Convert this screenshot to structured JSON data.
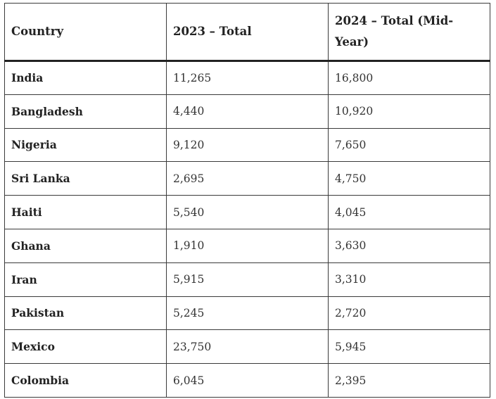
{
  "table": {
    "headers": [
      "Country",
      "2023 – Total",
      "2024 – Total (Mid-Year)"
    ],
    "rows": [
      [
        "India",
        "11,265",
        "16,800"
      ],
      [
        "Bangladesh",
        "4,440",
        "10,920"
      ],
      [
        "Nigeria",
        "9,120",
        "7,650"
      ],
      [
        "Sri Lanka",
        "2,695",
        "4,750"
      ],
      [
        "Haiti",
        "5,540",
        "4,045"
      ],
      [
        "Ghana",
        "1,910",
        "3,630"
      ],
      [
        "Iran",
        "5,915",
        "3,310"
      ],
      [
        "Pakistan",
        "5,245",
        "2,720"
      ],
      [
        "Mexico",
        "23,750",
        "5,945"
      ],
      [
        "Colombia",
        "6,045",
        "2,395"
      ]
    ]
  }
}
